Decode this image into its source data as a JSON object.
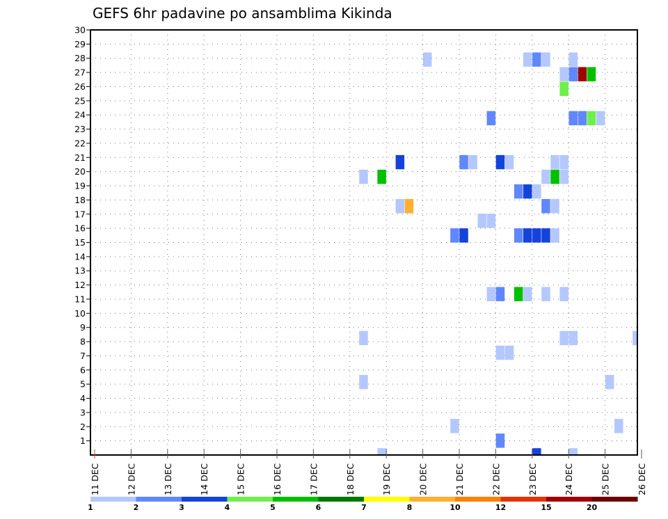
{
  "chart_data": {
    "type": "heatmap",
    "title": "GEFS 6hr padavine po ansamblima Kikinda",
    "xlabel": "",
    "ylabel": "",
    "x_tick_labels": [
      "11 DEC",
      "12 DEC",
      "13 DEC",
      "14 DEC",
      "15 DEC",
      "16 DEC",
      "17 DEC",
      "18 DEC",
      "19 DEC",
      "20 DEC",
      "21 DEC",
      "22 DEC",
      "23 DEC",
      "24 DEC",
      "25 DEC",
      "26 DEC"
    ],
    "x_range_days": [
      0,
      15
    ],
    "steps_per_day": 4,
    "y_tick_labels": [
      "1",
      "2",
      "3",
      "4",
      "5",
      "6",
      "7",
      "8",
      "9",
      "10",
      "11",
      "12",
      "13",
      "14",
      "15",
      "16",
      "17",
      "18",
      "19",
      "20",
      "21",
      "22",
      "23",
      "24",
      "25",
      "26",
      "27",
      "28",
      "29",
      "30"
    ],
    "ylim": [
      0,
      30
    ],
    "grid": true,
    "legend": {
      "placement": "bottom",
      "tick_labels": [
        "1",
        "2",
        "3",
        "4",
        "5",
        "6",
        "7",
        "8",
        "10",
        "12",
        "15",
        "20"
      ],
      "colors": [
        "#b4c8ff",
        "#5f87ff",
        "#1443dc",
        "#6ef04a",
        "#00c000",
        "#007800",
        "#ffff00",
        "#ffb030",
        "#ff8000",
        "#e63200",
        "#a00000",
        "#6e0000"
      ]
    },
    "bins": [
      "1-2",
      "2-3",
      "3-4",
      "4-5",
      "5-6",
      "6-7",
      "7-8",
      "8-10",
      "10-12",
      "12-15",
      "15-20",
      ">20"
    ],
    "cells": [
      {
        "member": 28,
        "step": 36,
        "level": 0
      },
      {
        "member": 28,
        "step": 47,
        "level": 0
      },
      {
        "member": 28,
        "step": 48,
        "level": 1
      },
      {
        "member": 28,
        "step": 49,
        "level": 0
      },
      {
        "member": 28,
        "step": 52,
        "level": 0
      },
      {
        "member": 27,
        "step": 51,
        "level": 0
      },
      {
        "member": 27,
        "step": 52,
        "level": 1
      },
      {
        "member": 27,
        "step": 53,
        "level": 10
      },
      {
        "member": 27,
        "step": 54,
        "level": 4
      },
      {
        "member": 26,
        "step": 51,
        "level": 3
      },
      {
        "member": 24,
        "step": 43,
        "level": 1
      },
      {
        "member": 24,
        "step": 52,
        "level": 1
      },
      {
        "member": 24,
        "step": 53,
        "level": 1
      },
      {
        "member": 24,
        "step": 54,
        "level": 3
      },
      {
        "member": 24,
        "step": 55,
        "level": 0
      },
      {
        "member": 21,
        "step": 33,
        "level": 2
      },
      {
        "member": 21,
        "step": 40,
        "level": 1
      },
      {
        "member": 21,
        "step": 41,
        "level": 0
      },
      {
        "member": 21,
        "step": 44,
        "level": 2
      },
      {
        "member": 21,
        "step": 45,
        "level": 0
      },
      {
        "member": 21,
        "step": 50,
        "level": 0
      },
      {
        "member": 21,
        "step": 51,
        "level": 0
      },
      {
        "member": 20,
        "step": 29,
        "level": 0
      },
      {
        "member": 20,
        "step": 31,
        "level": 4
      },
      {
        "member": 20,
        "step": 49,
        "level": 0
      },
      {
        "member": 20,
        "step": 50,
        "level": 4
      },
      {
        "member": 20,
        "step": 51,
        "level": 0
      },
      {
        "member": 19,
        "step": 46,
        "level": 1
      },
      {
        "member": 19,
        "step": 47,
        "level": 2
      },
      {
        "member": 19,
        "step": 48,
        "level": 0
      },
      {
        "member": 18,
        "step": 33,
        "level": 0
      },
      {
        "member": 18,
        "step": 34,
        "level": 7
      },
      {
        "member": 18,
        "step": 49,
        "level": 1
      },
      {
        "member": 18,
        "step": 50,
        "level": 0
      },
      {
        "member": 17,
        "step": 42,
        "level": 0
      },
      {
        "member": 17,
        "step": 43,
        "level": 0
      },
      {
        "member": 16,
        "step": 39,
        "level": 1
      },
      {
        "member": 16,
        "step": 40,
        "level": 2
      },
      {
        "member": 16,
        "step": 46,
        "level": 1
      },
      {
        "member": 16,
        "step": 47,
        "level": 2
      },
      {
        "member": 16,
        "step": 48,
        "level": 2
      },
      {
        "member": 16,
        "step": 49,
        "level": 2
      },
      {
        "member": 16,
        "step": 50,
        "level": 0
      },
      {
        "member": 12,
        "step": 43,
        "level": 0
      },
      {
        "member": 12,
        "step": 44,
        "level": 1
      },
      {
        "member": 12,
        "step": 46,
        "level": 4
      },
      {
        "member": 12,
        "step": 47,
        "level": 0
      },
      {
        "member": 12,
        "step": 49,
        "level": 0
      },
      {
        "member": 12,
        "step": 51,
        "level": 0
      },
      {
        "member": 9,
        "step": 29,
        "level": 0
      },
      {
        "member": 9,
        "step": 51,
        "level": 0
      },
      {
        "member": 9,
        "step": 52,
        "level": 0
      },
      {
        "member": 9,
        "step": 59,
        "level": 0
      },
      {
        "member": 8,
        "step": 44,
        "level": 0
      },
      {
        "member": 8,
        "step": 45,
        "level": 0
      },
      {
        "member": 6,
        "step": 29,
        "level": 0
      },
      {
        "member": 6,
        "step": 56,
        "level": 0
      },
      {
        "member": 3,
        "step": 39,
        "level": 0
      },
      {
        "member": 3,
        "step": 57,
        "level": 0
      },
      {
        "member": 2,
        "step": 44,
        "level": 1
      },
      {
        "member": 1,
        "step": 31,
        "level": 0
      },
      {
        "member": 1,
        "step": 48,
        "level": 2
      },
      {
        "member": 1,
        "step": 52,
        "level": 0
      }
    ]
  }
}
